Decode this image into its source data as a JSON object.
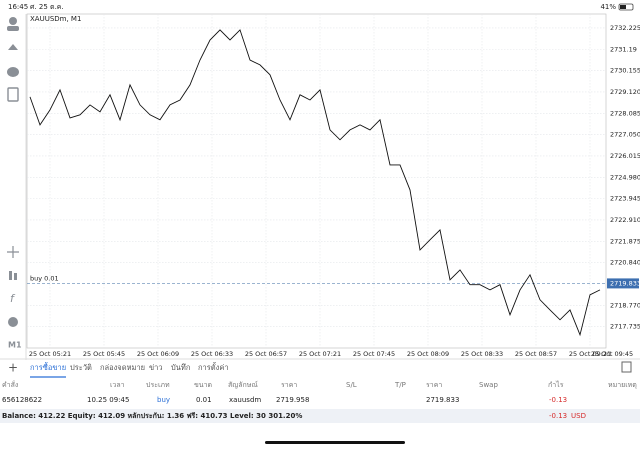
{
  "status_bar": {
    "time": "16:45",
    "date": "ศ. 25 ต.ค.",
    "battery": "41%"
  },
  "toolbar": {
    "timeframe": "M1"
  },
  "chart": {
    "type": "line",
    "symbol": "XAUUSDm, M1",
    "color": "#111111",
    "xtick_labels": [
      "25 Oct 05:21",
      "25 Oct 05:45",
      "25 Oct 06:09",
      "25 Oct 06:33",
      "25 Oct 06:57",
      "25 Oct 07:21",
      "25 Oct 07:45",
      "25 Oct 08:09",
      "25 Oct 08:33",
      "25 Oct 08:57",
      "25 Oct 09:21",
      "25 Oct 09:45"
    ],
    "values": [
      2728.88,
      2727.52,
      2728.25,
      2729.22,
      2727.86,
      2728.01,
      2728.49,
      2728.15,
      2728.98,
      2727.77,
      2729.46,
      2728.49,
      2728.01,
      2727.77,
      2728.49,
      2728.73,
      2729.46,
      2730.67,
      2731.64,
      2732.13,
      2731.64,
      2732.13,
      2730.67,
      2730.43,
      2729.95,
      2728.73,
      2727.77,
      2728.98,
      2728.73,
      2729.22,
      2727.28,
      2726.8,
      2727.28,
      2727.52,
      2727.28,
      2727.77,
      2725.58,
      2725.58,
      2724.37,
      2721.46,
      2721.95,
      2722.43,
      2720.01,
      2720.49,
      2719.77,
      2719.77,
      2719.52,
      2719.77,
      2718.31,
      2719.52,
      2720.25,
      2719.04,
      2718.55,
      2718.07,
      2718.55,
      2717.34,
      2719.28,
      2719.52
    ],
    "ylim": [
      2716.7,
      2732.9
    ],
    "yticks": [
      2732.225,
      2731.19,
      2730.155,
      {
        "value": 2729.12,
        "label": "2729.120"
      },
      2728.085,
      {
        "value": 2727.05,
        "label": "2727.050"
      },
      2726.015,
      {
        "value": 2724.98,
        "label": "2724.980"
      },
      2723.945,
      {
        "value": 2722.91,
        "label": "2722.910"
      },
      2721.875,
      {
        "value": 2720.84,
        "label": "2720.840"
      },
      {
        "value": 2718.77,
        "label": "2718.770"
      },
      2717.735
    ],
    "order_line": {
      "label": "buy 0.01",
      "price": 2719.833
    }
  },
  "tabs": [
    "การซื้อขาย",
    "ประวัติ",
    "กล่องจดหมาย",
    "ข่าว",
    "บันทึก",
    "การตั้งค่า"
  ],
  "table": {
    "columns": [
      "คำสั่ง",
      "เวลา",
      "ประเภท",
      "ขนาด",
      "สัญลักษณ์",
      "ราคา",
      "S/L",
      "T/P",
      "ราคา",
      "Swap",
      "กำไร",
      "หมายเหตุ"
    ],
    "row": {
      "0": "656128622",
      "1": "10.25 09:45",
      "2": "buy",
      "3": "0.01",
      "4": "xauusdm",
      "5": "2719.958",
      "8": "2719.833",
      "10": "-0.13"
    }
  },
  "summary": {
    "text": "Balance: 412.22 Equity: 412.09 หลักประกัน: 1.36 ฟรี: 410.73 Level: 30 301.20%",
    "profit": "-0.13",
    "currency": "USD"
  }
}
